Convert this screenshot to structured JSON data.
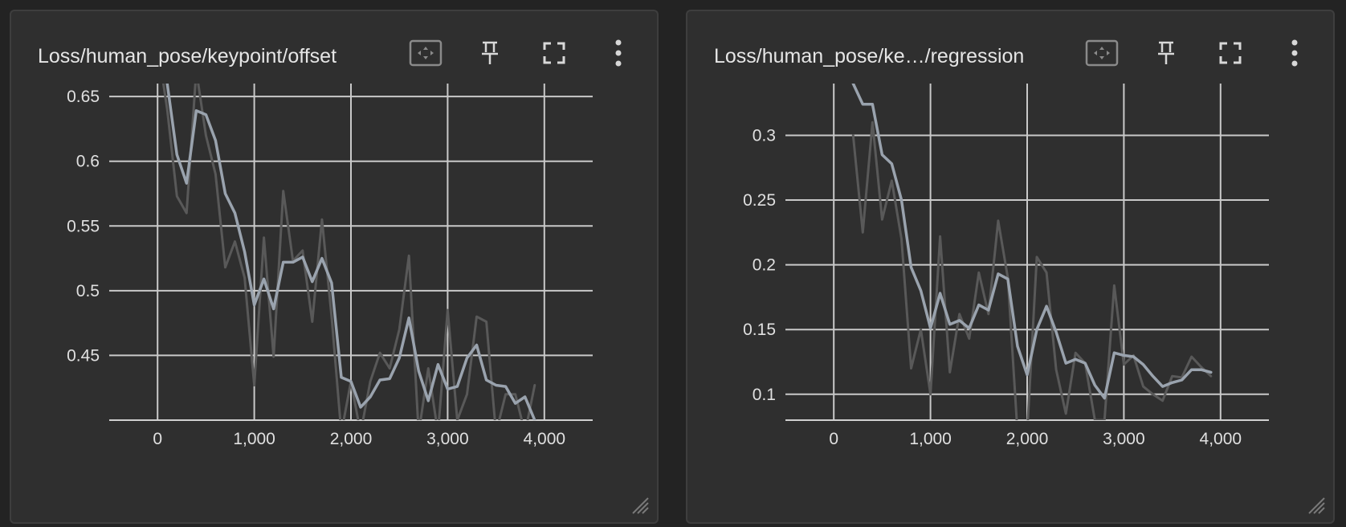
{
  "cards": [
    {
      "title": "Loss/human_pose/keypoint/offset",
      "icons": [
        "fit-to-data-icon",
        "pin-icon",
        "fullscreen-icon",
        "more-vert-icon"
      ],
      "chart_data": {
        "type": "line",
        "title": "Loss/human_pose/keypoint/offset",
        "xlabel": "",
        "ylabel": "",
        "xlim": [
          -500,
          4500
        ],
        "ylim": [
          0.4,
          0.66
        ],
        "xticks": [
          0,
          1000,
          2000,
          3000,
          4000
        ],
        "xtick_labels": [
          "0",
          "1,000",
          "2,000",
          "3,000",
          "4,000"
        ],
        "yticks": [
          0.45,
          0.5,
          0.55,
          0.6,
          0.65
        ],
        "ytick_labels": [
          "0.45",
          "0.5",
          "0.55",
          "0.6",
          "0.65"
        ],
        "grid": true,
        "series": [
          {
            "role": "raw",
            "color": "#595959",
            "x": [
              0,
              100,
              200,
              300,
              400,
              500,
              600,
              700,
              800,
              900,
              1000,
              1100,
              1200,
              1300,
              1400,
              1500,
              1600,
              1700,
              1800,
              1900,
              2000,
              2100,
              2200,
              2300,
              2400,
              2500,
              2600,
              2700,
              2800,
              2900,
              3000,
              3100,
              3200,
              3300,
              3400,
              3500,
              3600,
              3700,
              3800,
              3900
            ],
            "y": [
              0.69,
              0.64,
              0.573,
              0.56,
              0.67,
              0.62,
              0.59,
              0.518,
              0.538,
              0.51,
              0.427,
              0.541,
              0.449,
              0.577,
              0.523,
              0.531,
              0.476,
              0.555,
              0.48,
              0.39,
              0.43,
              0.39,
              0.43,
              0.452,
              0.44,
              0.47,
              0.527,
              0.39,
              0.44,
              0.39,
              0.485,
              0.4,
              0.42,
              0.48,
              0.476,
              0.39,
              0.42,
              0.42,
              0.39,
              0.427
            ]
          },
          {
            "role": "smoothed",
            "color": "#9aa3ae",
            "x": [
              0,
              100,
              200,
              300,
              400,
              500,
              600,
              700,
              800,
              900,
              1000,
              1100,
              1200,
              1300,
              1400,
              1500,
              1600,
              1700,
              1800,
              1900,
              2000,
              2100,
              2200,
              2300,
              2400,
              2500,
              2600,
              2700,
              2800,
              2900,
              3000,
              3100,
              3200,
              3300,
              3400,
              3500,
              3600,
              3700,
              3800,
              3900
            ],
            "y": [
              0.67,
              0.66,
              0.605,
              0.583,
              0.639,
              0.636,
              0.616,
              0.575,
              0.56,
              0.53,
              0.489,
              0.509,
              0.486,
              0.522,
              0.522,
              0.526,
              0.507,
              0.525,
              0.506,
              0.433,
              0.43,
              0.41,
              0.418,
              0.431,
              0.432,
              0.448,
              0.479,
              0.438,
              0.415,
              0.443,
              0.424,
              0.426,
              0.448,
              0.458,
              0.431,
              0.427,
              0.426,
              0.413,
              0.418,
              0.4
            ]
          }
        ]
      }
    },
    {
      "title": "Loss/human_pose/ke…/regression",
      "icons": [
        "fit-to-data-icon",
        "pin-icon",
        "fullscreen-icon",
        "more-vert-icon"
      ],
      "chart_data": {
        "type": "line",
        "title": "Loss/human_pose/ke…/regression",
        "xlabel": "",
        "ylabel": "",
        "xlim": [
          -500,
          4500
        ],
        "ylim": [
          0.08,
          0.34
        ],
        "xticks": [
          0,
          1000,
          2000,
          3000,
          4000
        ],
        "xtick_labels": [
          "0",
          "1,000",
          "2,000",
          "3,000",
          "4,000"
        ],
        "yticks": [
          0.1,
          0.15,
          0.2,
          0.25,
          0.3
        ],
        "ytick_labels": [
          "0.1",
          "0.15",
          "0.2",
          "0.25",
          "0.3"
        ],
        "grid": true,
        "series": [
          {
            "role": "raw",
            "color": "#595959",
            "x": [
              200,
              300,
              400,
              500,
              600,
              700,
              800,
              900,
              1000,
              1100,
              1200,
              1300,
              1400,
              1500,
              1600,
              1700,
              1800,
              1900,
              2000,
              2100,
              2200,
              2300,
              2400,
              2500,
              2600,
              2700,
              2800,
              2900,
              3000,
              3100,
              3200,
              3300,
              3400,
              3500,
              3600,
              3700,
              3800,
              3900
            ],
            "y": [
              0.3,
              0.225,
              0.31,
              0.235,
              0.265,
              0.22,
              0.12,
              0.15,
              0.1,
              0.222,
              0.117,
              0.162,
              0.143,
              0.194,
              0.162,
              0.234,
              0.19,
              0.07,
              0.07,
              0.206,
              0.194,
              0.119,
              0.085,
              0.132,
              0.124,
              0.08,
              0.08,
              0.184,
              0.123,
              0.13,
              0.106,
              0.1,
              0.095,
              0.114,
              0.113,
              0.129,
              0.121,
              0.114
            ]
          },
          {
            "role": "smoothed",
            "color": "#9aa3ae",
            "x": [
              200,
              300,
              400,
              500,
              600,
              700,
              800,
              900,
              1000,
              1100,
              1200,
              1300,
              1400,
              1500,
              1600,
              1700,
              1800,
              1900,
              2000,
              2100,
              2200,
              2300,
              2400,
              2500,
              2600,
              2700,
              2800,
              2900,
              3000,
              3100,
              3200,
              3300,
              3400,
              3500,
              3600,
              3700,
              3800,
              3900
            ],
            "y": [
              0.34,
              0.324,
              0.324,
              0.285,
              0.278,
              0.25,
              0.198,
              0.18,
              0.151,
              0.178,
              0.154,
              0.157,
              0.151,
              0.169,
              0.165,
              0.193,
              0.189,
              0.137,
              0.115,
              0.15,
              0.168,
              0.148,
              0.124,
              0.127,
              0.124,
              0.107,
              0.097,
              0.132,
              0.13,
              0.129,
              0.123,
              0.114,
              0.106,
              0.109,
              0.111,
              0.119,
              0.119,
              0.117
            ]
          }
        ]
      }
    }
  ]
}
